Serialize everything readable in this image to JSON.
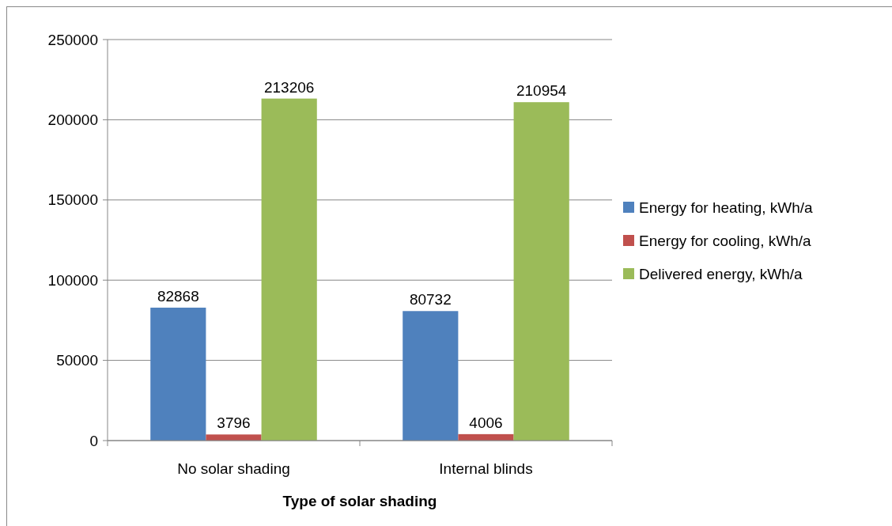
{
  "chart_data": {
    "type": "bar",
    "xlabel": "Type of solar shading",
    "categories": [
      "No solar shading",
      "Internal blinds"
    ],
    "series": [
      {
        "name": "Energy for heating, kWh/a",
        "color": "#4f81bd",
        "values": [
          82868,
          80732
        ]
      },
      {
        "name": "Energy for cooling, kWh/a",
        "color": "#c0504d",
        "values": [
          3796,
          4006
        ]
      },
      {
        "name": "Delivered energy, kWh/a",
        "color": "#9bbb59",
        "values": [
          213206,
          210954
        ]
      }
    ],
    "ylim": [
      0,
      250000
    ],
    "yticks": [
      0,
      50000,
      100000,
      150000,
      200000,
      250000
    ],
    "grid": "y",
    "legend": "right",
    "data_labels": true
  }
}
